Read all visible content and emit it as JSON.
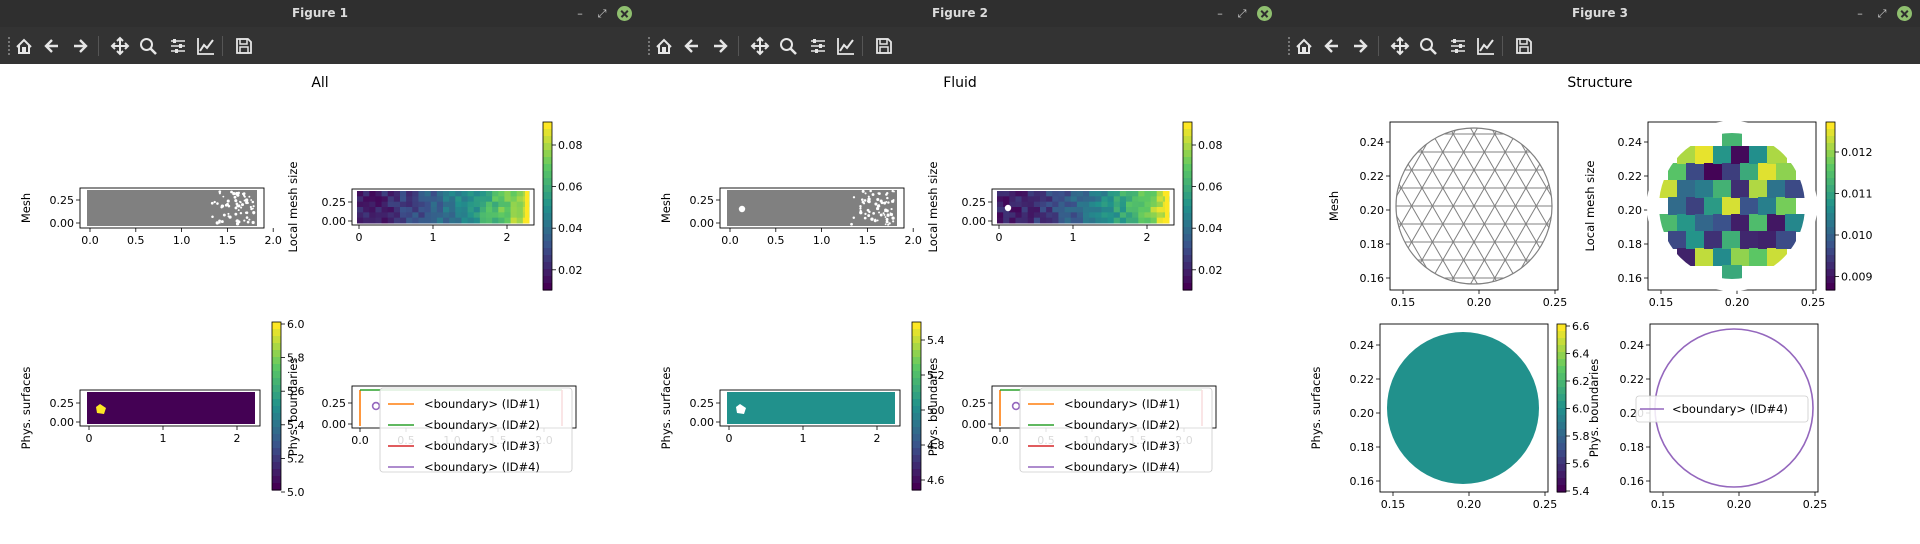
{
  "windows": [
    {
      "title": "Figure 1",
      "suptitle": "All",
      "panels": {
        "mesh": {
          "ylabel": "Mesh",
          "xticks": [
            "0.0",
            "0.5",
            "1.0",
            "1.5",
            "2.0"
          ],
          "yticks": [
            "0.25",
            "0.00"
          ]
        },
        "meshsize": {
          "ylabel": "Local mesh size",
          "xticks": [
            "0",
            "1",
            "2"
          ],
          "yticks": [
            "0.25",
            "0.00"
          ],
          "cbar_ticks": [
            "0.08",
            "0.06",
            "0.04",
            "0.02"
          ]
        },
        "surfaces": {
          "ylabel": "Phys. surfaces",
          "xticks": [
            "0",
            "1",
            "2"
          ],
          "yticks": [
            "0.25",
            "0.00"
          ],
          "cbar_ticks": [
            "6.0",
            "5.8",
            "5.6",
            "5.4",
            "5.2",
            "5.0"
          ]
        },
        "boundaries": {
          "ylabel": "Phys. boundaries",
          "xticks": [
            "0.0",
            "0.5",
            "1.0",
            "1.5",
            "2.0"
          ],
          "yticks": [
            "0.25",
            "0.00"
          ],
          "legend": [
            "<boundary> (ID#1)",
            "<boundary> (ID#2)",
            "<boundary> (ID#3)",
            "<boundary> (ID#4)"
          ]
        }
      }
    },
    {
      "title": "Figure 2",
      "suptitle": "Fluid",
      "panels": {
        "mesh": {
          "ylabel": "Mesh",
          "xticks": [
            "0.0",
            "0.5",
            "1.0",
            "1.5",
            "2.0"
          ],
          "yticks": [
            "0.25",
            "0.00"
          ]
        },
        "meshsize": {
          "ylabel": "Local mesh size",
          "xticks": [
            "0",
            "1",
            "2"
          ],
          "yticks": [
            "0.25",
            "0.00"
          ],
          "cbar_ticks": [
            "0.08",
            "0.06",
            "0.04",
            "0.02"
          ]
        },
        "surfaces": {
          "ylabel": "Phys. surfaces",
          "xticks": [
            "0",
            "1",
            "2"
          ],
          "yticks": [
            "0.25",
            "0.00"
          ],
          "cbar_ticks": [
            "5.4",
            "5.2",
            "5.0",
            "4.8",
            "4.6"
          ]
        },
        "boundaries": {
          "ylabel": "Phys. boundaries",
          "xticks": [
            "0.0",
            "0.5",
            "1.0",
            "1.5",
            "2.0"
          ],
          "yticks": [
            "0.25",
            "0.00"
          ],
          "legend": [
            "<boundary> (ID#1)",
            "<boundary> (ID#2)",
            "<boundary> (ID#3)",
            "<boundary> (ID#4)"
          ]
        }
      }
    },
    {
      "title": "Figure 3",
      "suptitle": "Structure",
      "panels": {
        "mesh": {
          "ylabel": "Mesh",
          "xticks": [
            "0.15",
            "0.20",
            "0.25"
          ],
          "yticks": [
            "0.24",
            "0.22",
            "0.20",
            "0.18",
            "0.16"
          ]
        },
        "meshsize": {
          "ylabel": "Local mesh size",
          "xticks": [
            "0.15",
            "0.20",
            "0.25"
          ],
          "yticks": [
            "0.24",
            "0.22",
            "0.20",
            "0.18",
            "0.16"
          ],
          "cbar_ticks": [
            "0.012",
            "0.011",
            "0.010",
            "0.009"
          ]
        },
        "surfaces": {
          "ylabel": "Phys. surfaces",
          "xticks": [
            "0.15",
            "0.20",
            "0.25"
          ],
          "yticks": [
            "0.24",
            "0.22",
            "0.20",
            "0.18",
            "0.16"
          ],
          "cbar_ticks": [
            "6.6",
            "6.4",
            "6.2",
            "6.0",
            "5.8",
            "5.6",
            "5.4"
          ]
        },
        "boundaries": {
          "ylabel": "Phys. boundaries",
          "xticks": [
            "0.15",
            "0.20",
            "0.25"
          ],
          "yticks": [
            "0.24",
            "0.22",
            "0.20",
            "0.18",
            "0.16"
          ],
          "legend": [
            "<boundary> (ID#4)"
          ]
        }
      }
    }
  ],
  "toolbar_icons": [
    "home-icon",
    "back-arrow-icon",
    "forward-arrow-icon",
    "pan-move-icon",
    "zoom-magnifier-icon",
    "configure-subplots-icon",
    "edit-axis-icon",
    "save-floppy-icon"
  ],
  "colors": {
    "titlebar": "#2f2f2f",
    "toolbar": "#333333",
    "mesh_gray": "#808080",
    "viridis_low": "#440154",
    "viridis_mid": "#21918c",
    "viridis_high": "#fde725",
    "boundary_1": "#ff7f0e",
    "boundary_2": "#2ca02c",
    "boundary_3": "#d62728",
    "boundary_4": "#9467bd"
  }
}
